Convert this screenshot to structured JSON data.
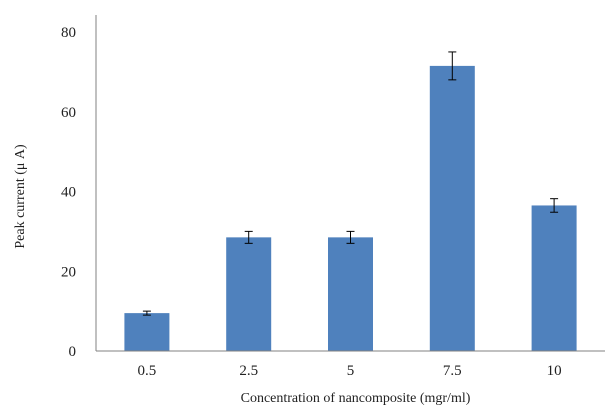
{
  "chart_data": {
    "type": "bar",
    "categories": [
      "0.5",
      "2.5",
      "5",
      "7.5",
      "10"
    ],
    "values": [
      9.5,
      28.5,
      28.5,
      71.5,
      36.5
    ],
    "errors": [
      0.5,
      1.5,
      1.5,
      3.5,
      1.7
    ],
    "xlabel": "Concentration of nancomposite (mgr/ml)",
    "ylabel": "Peak current (μ A)",
    "ylim": [
      0,
      80
    ],
    "yticks": [
      0,
      20,
      40,
      60,
      80
    ],
    "grid": false,
    "colors": {
      "bar": "#4f81bd",
      "axis": "#808080",
      "error_bar": "#000000"
    }
  }
}
